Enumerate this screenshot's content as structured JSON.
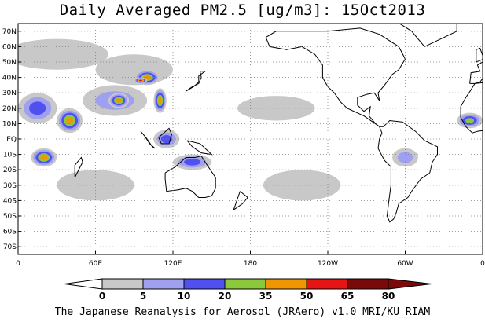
{
  "title": "Daily Averaged PM2.5 [ug/m3]: 15Oct2013",
  "caption": "The Japanese Reanalysis for Aerosol (JRAero) v1.0 MRI/KU_RIAM",
  "map": {
    "lon_range": [
      0,
      360
    ],
    "lat_range": [
      -75,
      75
    ],
    "lat_ticks": [
      "70N",
      "60N",
      "50N",
      "40N",
      "30N",
      "20N",
      "10N",
      "EQ",
      "10S",
      "20S",
      "30S",
      "40S",
      "50S",
      "60S",
      "70S"
    ],
    "lat_values": [
      70,
      60,
      50,
      40,
      30,
      20,
      10,
      0,
      -10,
      -20,
      -30,
      -40,
      -50,
      -60,
      -70
    ],
    "lon_ticks": [
      "0",
      "60E",
      "120E",
      "180",
      "120W",
      "60W",
      "0"
    ],
    "lon_values": [
      0,
      60,
      120,
      180,
      240,
      300,
      360
    ],
    "grid": "dotted",
    "coastline_color": "#000000"
  },
  "legend": {
    "labels": [
      "0",
      "5",
      "10",
      "20",
      "35",
      "50",
      "65",
      "80"
    ],
    "colors": [
      "#ffffff",
      "#c8c8c8",
      "#a0a0f0",
      "#5050f0",
      "#8cc83c",
      "#f09600",
      "#e61414",
      "#7a0a0a"
    ]
  },
  "fields": [
    {
      "lon": 30,
      "lat": 55,
      "rx": 40,
      "ry": 10,
      "level": 1
    },
    {
      "lon": 90,
      "lat": 45,
      "rx": 30,
      "ry": 10,
      "level": 1
    },
    {
      "lon": 75,
      "lat": 25,
      "rx": 25,
      "ry": 10,
      "level": 2
    },
    {
      "lon": 100,
      "lat": 40,
      "rx": 10,
      "ry": 5,
      "level": 5
    },
    {
      "lon": 95,
      "lat": 38,
      "rx": 5,
      "ry": 2,
      "level": 6
    },
    {
      "lon": 15,
      "lat": 20,
      "rx": 15,
      "ry": 10,
      "level": 3
    },
    {
      "lon": 40,
      "lat": 12,
      "rx": 10,
      "ry": 8,
      "level": 5
    },
    {
      "lon": 78,
      "lat": 25,
      "rx": 8,
      "ry": 5,
      "level": 5
    },
    {
      "lon": 110,
      "lat": 25,
      "rx": 5,
      "ry": 8,
      "level": 5
    },
    {
      "lon": 20,
      "lat": -12,
      "rx": 10,
      "ry": 6,
      "level": 5
    },
    {
      "lon": 135,
      "lat": -15,
      "rx": 15,
      "ry": 5,
      "level": 3
    },
    {
      "lon": 115,
      "lat": 0,
      "rx": 10,
      "ry": 6,
      "level": 3
    },
    {
      "lon": 300,
      "lat": -12,
      "rx": 10,
      "ry": 6,
      "level": 2
    },
    {
      "lon": 200,
      "lat": 20,
      "rx": 30,
      "ry": 8,
      "level": 1
    },
    {
      "lon": 350,
      "lat": 12,
      "rx": 10,
      "ry": 5,
      "level": 4
    },
    {
      "lon": 220,
      "lat": -30,
      "rx": 30,
      "ry": 10,
      "level": 1
    },
    {
      "lon": 60,
      "lat": -30,
      "rx": 30,
      "ry": 10,
      "level": 1
    }
  ]
}
